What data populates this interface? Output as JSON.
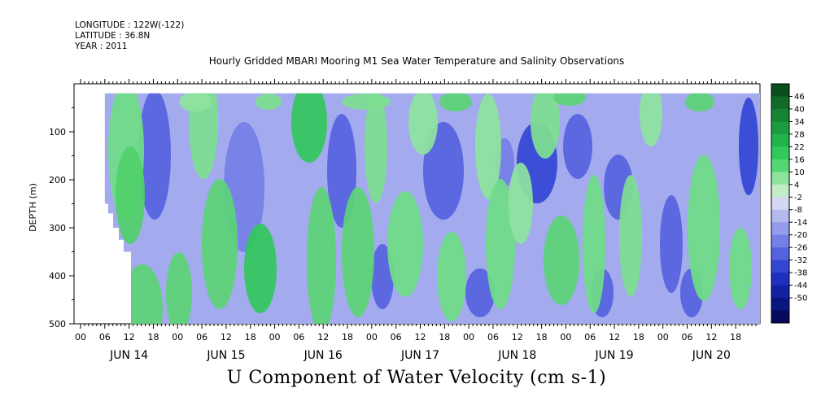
{
  "header": {
    "longitude": "LONGITUDE : 122W(-122)",
    "latitude": "LATITUDE : 36.8N",
    "year": "YEAR : 2011"
  },
  "chart_data": {
    "type": "heatmap",
    "title": "Hourly Gridded MBARI Mooring M1 Sea Water Temperature and Salinity Observations",
    "variable_title": "U Component of Water Velocity (cm s-1)",
    "ylabel": "DEPTH (m)",
    "y_axis": {
      "range": [
        500,
        0
      ],
      "data_top": 20,
      "ticks": [
        100,
        200,
        300,
        400,
        500
      ],
      "reversed": true
    },
    "x_axis": {
      "hour_ticks": [
        "00",
        "06",
        "12",
        "18",
        "00",
        "06",
        "12",
        "18",
        "00",
        "06",
        "12",
        "18",
        "00",
        "06",
        "12",
        "18",
        "00",
        "06",
        "12",
        "18",
        "00",
        "06",
        "12",
        "18",
        "00",
        "06",
        "12",
        "18"
      ],
      "days": [
        "JUN 14",
        "JUN 15",
        "JUN 16",
        "JUN 17",
        "JUN 18",
        "JUN 19",
        "JUN 20"
      ],
      "range_hours": [
        0,
        168
      ],
      "data_start_hour": 6
    },
    "colorbar": {
      "labels": [
        "46",
        "40",
        "34",
        "28",
        "22",
        "16",
        "10",
        "4",
        "-2",
        "-8",
        "-14",
        "-20",
        "-26",
        "-32",
        "-38",
        "-44",
        "-50"
      ],
      "colors": [
        "#0b4d1c",
        "#116a28",
        "#168334",
        "#1b9b3f",
        "#22b34b",
        "#33c85c",
        "#55d774",
        "#8ee49e",
        "#c5ecc8",
        "#d4d8f2",
        "#b4baf0",
        "#949ceb",
        "#7580e6",
        "#5563de",
        "#3446d4",
        "#1f2fbf",
        "#1222a3",
        "#0a167f",
        "#060a5c"
      ],
      "range": [
        -50,
        52
      ]
    }
  }
}
